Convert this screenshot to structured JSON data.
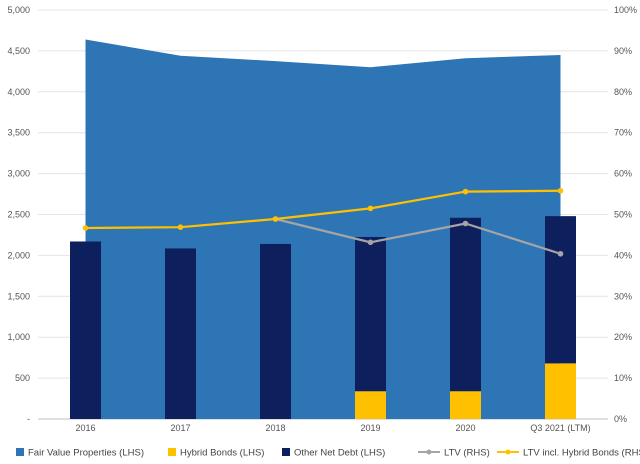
{
  "chart_data": {
    "type": "bar",
    "categories": [
      "2016",
      "2017",
      "2018",
      "2019",
      "2020",
      "Q3 2021 (LTM)"
    ],
    "y_left": {
      "ticks": [
        "-",
        "500",
        "1,000",
        "1,500",
        "2,000",
        "2,500",
        "3,000",
        "3,500",
        "4,000",
        "4,500",
        "5,000"
      ],
      "lim": [
        0,
        5000
      ]
    },
    "y_right": {
      "ticks": [
        "0%",
        "10%",
        "20%",
        "30%",
        "40%",
        "50%",
        "60%",
        "70%",
        "80%",
        "90%",
        "100%"
      ],
      "lim": [
        0,
        100
      ]
    },
    "legend_position": "bottom",
    "series": [
      {
        "name": "Fair Value Properties (LHS)",
        "type": "area",
        "axis": "left",
        "color": "#2E75B6",
        "values": [
          4640,
          4440,
          4375,
          4300,
          4410,
          4450
        ]
      },
      {
        "name": "Hybrid Bonds (LHS)",
        "type": "bar",
        "axis": "left",
        "stack": "debt",
        "color": "#FFC000",
        "values": [
          0,
          0,
          0,
          340,
          340,
          680
        ]
      },
      {
        "name": "Other Net Debt (LHS)",
        "type": "bar",
        "axis": "left",
        "stack": "debt",
        "color": "#0D1F5C",
        "values": [
          2170,
          2085,
          2140,
          1885,
          2120,
          1800
        ]
      },
      {
        "name": "LTV (RHS)",
        "type": "line",
        "axis": "right",
        "color": "#A5A5A5",
        "values": [
          null,
          null,
          48.9,
          43.2,
          47.8,
          40.4
        ]
      },
      {
        "name": "LTV incl. Hybrid Bonds (RHS)",
        "type": "line",
        "axis": "right",
        "color": "#FFC000",
        "values": [
          46.7,
          46.9,
          48.9,
          51.5,
          55.6,
          55.8
        ]
      }
    ]
  }
}
